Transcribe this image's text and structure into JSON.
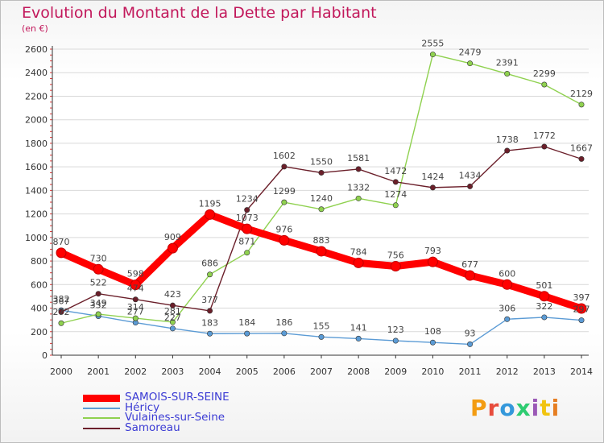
{
  "header": {
    "title": "Evolution du Montant de la Dette par Habitant",
    "unit": "(en €)"
  },
  "logo": {
    "text": "Proxiti",
    "colors": [
      "#f39c12",
      "#e74c3c",
      "#3498db",
      "#2ecc71",
      "#9b59b6",
      "#f1c40f",
      "#e67e22"
    ]
  },
  "chart_data": {
    "type": "line",
    "title": "Evolution du Montant de la Dette par Habitant",
    "ylabel": "(en €)",
    "xlabel": "",
    "x": [
      2000,
      2001,
      2002,
      2003,
      2004,
      2005,
      2006,
      2007,
      2008,
      2009,
      2010,
      2011,
      2012,
      2013,
      2014
    ],
    "ylim": [
      0,
      2600
    ],
    "yticks": [
      0,
      200,
      400,
      600,
      800,
      1000,
      1200,
      1400,
      1600,
      1800,
      2000,
      2200,
      2400,
      2600
    ],
    "grid": true,
    "legend_position": "bottom-left",
    "series": [
      {
        "name": "SAMOIS-SUR-SEINE",
        "color": "#ff0000",
        "values": [
          870,
          730,
          598,
          909,
          1195,
          1073,
          976,
          883,
          784,
          756,
          793,
          677,
          600,
          501,
          397
        ]
      },
      {
        "name": "Héricy",
        "color": "#5b9bd5",
        "values": [
          382,
          332,
          277,
          227,
          183,
          184,
          186,
          155,
          141,
          123,
          108,
          93,
          306,
          322,
          297
        ]
      },
      {
        "name": "Vulaines-sur-Seine",
        "color": "#8fd14f",
        "values": [
          272,
          349,
          314,
          281,
          686,
          871,
          1299,
          1240,
          1332,
          1274,
          2555,
          2479,
          2391,
          2299,
          2129
        ]
      },
      {
        "name": "Samoreau",
        "color": "#6b1f2a",
        "values": [
          367,
          522,
          474,
          423,
          377,
          1234,
          1602,
          1550,
          1581,
          1472,
          1424,
          1434,
          1738,
          1772,
          1667
        ]
      }
    ]
  }
}
